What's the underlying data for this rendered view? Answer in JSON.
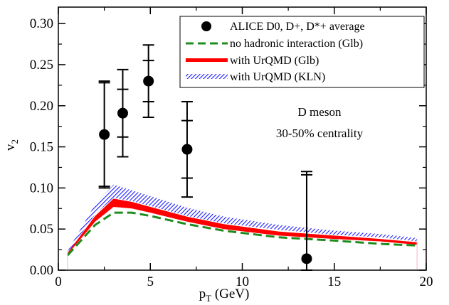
{
  "chart_data": {
    "type": "line",
    "xlabel": {
      "main": "p",
      "sub": "T",
      "unit": "(GeV)"
    },
    "ylabel": {
      "main": "v",
      "sub": "2"
    },
    "xlim": [
      0,
      20
    ],
    "ylim": [
      0,
      0.32
    ],
    "xticks": [
      0,
      5,
      10,
      15,
      20
    ],
    "yticks": [
      0.0,
      0.05,
      0.1,
      0.15,
      0.2,
      0.25,
      0.3
    ],
    "ytick_labels": [
      "0.00",
      "0.05",
      "0.10",
      "0.15",
      "0.20",
      "0.25",
      "0.30"
    ],
    "grid": false,
    "legend_position": "top-right",
    "annotations": [
      "D meson",
      "30-50% centrality"
    ],
    "series": [
      {
        "name": "ALICE D0, D+, D*+ average",
        "kind": "scatter",
        "color": "#000000",
        "x": [
          2.5,
          3.5,
          4.9,
          7.0,
          13.5
        ],
        "y": [
          0.165,
          0.191,
          0.23,
          0.147,
          0.014
        ],
        "err_inner": [
          0.063,
          0.029,
          0.025,
          0.035,
          0.102
        ],
        "err_outer": [
          0.065,
          0.053,
          0.044,
          0.058,
          0.106
        ]
      },
      {
        "name": "no hadronic interaction (Glb)",
        "kind": "dashed-line",
        "color": "#1e8c1e",
        "x": [
          0.5,
          2.0,
          3.0,
          4.0,
          5.0,
          7.0,
          9.0,
          12.0,
          15.0,
          17.5,
          19.5
        ],
        "y": [
          0.018,
          0.055,
          0.07,
          0.07,
          0.066,
          0.056,
          0.048,
          0.04,
          0.036,
          0.032,
          0.03
        ]
      },
      {
        "name": "with UrQMD (Glb)",
        "kind": "band",
        "color": "#ff0000",
        "x": [
          0.5,
          2.0,
          3.0,
          4.0,
          5.0,
          7.0,
          9.0,
          12.0,
          15.0,
          17.5,
          19.5
        ],
        "y_low": [
          0.019,
          0.059,
          0.077,
          0.075,
          0.07,
          0.059,
          0.05,
          0.042,
          0.038,
          0.035,
          0.031
        ],
        "y_high": [
          0.021,
          0.066,
          0.087,
          0.083,
          0.077,
          0.065,
          0.056,
          0.047,
          0.042,
          0.038,
          0.034
        ]
      },
      {
        "name": "with UrQMD (KLN)",
        "kind": "hatched-band",
        "color": "#1a1aff",
        "x": [
          0.5,
          2.0,
          3.0,
          4.0,
          5.0,
          7.0,
          9.0,
          12.0,
          15.0,
          17.5,
          19.5
        ],
        "y_low": [
          0.02,
          0.068,
          0.088,
          0.084,
          0.078,
          0.066,
          0.057,
          0.049,
          0.043,
          0.04,
          0.035
        ],
        "y_high": [
          0.023,
          0.08,
          0.104,
          0.097,
          0.09,
          0.076,
          0.065,
          0.055,
          0.048,
          0.044,
          0.039
        ]
      }
    ]
  }
}
